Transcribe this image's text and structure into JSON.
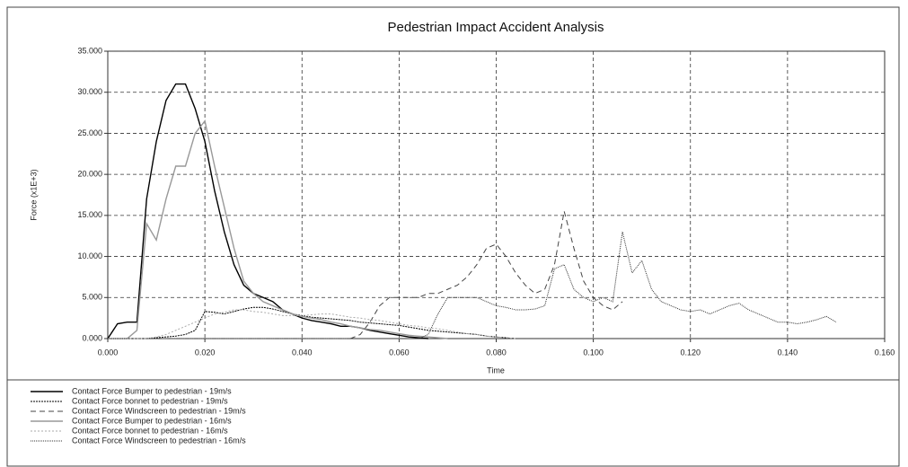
{
  "chart_data": {
    "type": "line",
    "title": "Pedestrian Impact Accident Analysis",
    "x_label": "Time",
    "y_label": "Force (x1E+3)",
    "grid": true,
    "legend": "bottom",
    "xlim": [
      0,
      0.16
    ],
    "xticks": [
      {
        "value": 0,
        "label": "0.000"
      },
      {
        "value": 0.02,
        "label": "0.020"
      },
      {
        "value": 0.04,
        "label": "0.040"
      },
      {
        "value": 0.06,
        "label": "0.060"
      },
      {
        "value": 0.08,
        "label": "0.080"
      },
      {
        "value": 0.1,
        "label": "0.100"
      },
      {
        "value": 0.12,
        "label": "0.120"
      },
      {
        "value": 0.14,
        "label": "0.140"
      },
      {
        "value": 0.16,
        "label": "0.160"
      }
    ],
    "ylim": [
      0,
      35
    ],
    "yticks": [
      {
        "value": 0,
        "label": "0.000"
      },
      {
        "value": 5,
        "label": "5.000"
      },
      {
        "value": 10,
        "label": "10.000"
      },
      {
        "value": 15,
        "label": "15.000"
      },
      {
        "value": 20,
        "label": "20.000"
      },
      {
        "value": 25,
        "label": "25.000"
      },
      {
        "value": 30,
        "label": "30.000"
      },
      {
        "value": 35,
        "label": "35.000"
      }
    ],
    "x": [
      0,
      0.002,
      0.004,
      0.006,
      0.008,
      0.01,
      0.012,
      0.014,
      0.016,
      0.018,
      0.02,
      0.022,
      0.024,
      0.026,
      0.028,
      0.03,
      0.032,
      0.034,
      0.036,
      0.038,
      0.04,
      0.042,
      0.044,
      0.046,
      0.048,
      0.05,
      0.052,
      0.054,
      0.056,
      0.058,
      0.06,
      0.062,
      0.064,
      0.066,
      0.068,
      0.07,
      0.072,
      0.074,
      0.076,
      0.078,
      0.08,
      0.082,
      0.084,
      0.086,
      0.088,
      0.09,
      0.092,
      0.094,
      0.096,
      0.098,
      0.1,
      0.102,
      0.104,
      0.106,
      0.108,
      0.11,
      0.112,
      0.114,
      0.116,
      0.118,
      0.12,
      0.122,
      0.124,
      0.126,
      0.128,
      0.13,
      0.132,
      0.134,
      0.136,
      0.138,
      0.14,
      0.142,
      0.144,
      0.146,
      0.148,
      0.15
    ],
    "series": [
      {
        "name": "Contact Force Bumper to pedestrian - 19m/s",
        "color": "#000000",
        "dash": "none",
        "width": 1.4,
        "values": [
          0,
          1.8,
          2,
          2,
          17,
          24,
          29,
          31,
          31,
          28,
          24,
          18,
          13,
          9,
          6.5,
          5.5,
          5,
          4.5,
          3.5,
          3,
          2.5,
          2.2,
          2,
          1.8,
          1.5,
          1.5,
          1.3,
          1,
          0.8,
          0.6,
          0.4,
          0.2,
          0.1,
          0,
          null,
          null,
          null,
          null,
          null,
          null,
          null,
          null,
          null,
          null,
          null,
          null,
          null,
          null,
          null,
          null,
          null,
          null,
          null,
          null,
          null,
          null,
          null,
          null,
          null,
          null,
          null,
          null,
          null,
          null,
          null,
          null,
          null,
          null,
          null,
          null,
          null,
          null,
          null,
          null,
          null,
          null
        ]
      },
      {
        "name": "Contact Force bonnet to pedestrian - 19m/s",
        "color": "#000000",
        "dash": "2,1",
        "width": 1,
        "values": [
          0,
          0,
          0,
          0,
          0,
          0.1,
          0.2,
          0.3,
          0.5,
          1,
          3.3,
          3.2,
          3,
          3.3,
          3.6,
          3.8,
          3.8,
          3.6,
          3.3,
          3,
          2.8,
          2.6,
          2.5,
          2.4,
          2.3,
          2.2,
          2,
          1.9,
          1.8,
          1.7,
          1.6,
          1.4,
          1.2,
          1,
          0.9,
          0.8,
          0.7,
          0.6,
          0.5,
          0.3,
          0.2,
          0.1,
          0,
          null,
          null,
          null,
          null,
          null,
          null,
          null,
          null,
          null,
          null,
          null,
          null,
          null,
          null,
          null,
          null,
          null,
          null,
          null,
          null,
          null,
          null,
          null,
          null,
          null,
          null,
          null,
          null,
          null,
          null,
          null,
          null,
          null
        ]
      },
      {
        "name": "Contact Force Windscreen to pedestrian - 19m/s",
        "color": "#444444",
        "dash": "6,4",
        "width": 1,
        "values": [
          0,
          0,
          0,
          0,
          0,
          0,
          0,
          0,
          0,
          0,
          0,
          0,
          0,
          0,
          0,
          0,
          0,
          0,
          0,
          0,
          0,
          0,
          0,
          0,
          0,
          0,
          0.5,
          2,
          4,
          5,
          5,
          5,
          5,
          5.5,
          5.5,
          6,
          6.5,
          7.5,
          9,
          11,
          11.5,
          10,
          8,
          6.5,
          5.5,
          6,
          9,
          15.5,
          11,
          7,
          5,
          4,
          3.5,
          4.5,
          null,
          null,
          null,
          null,
          null,
          null,
          null,
          null,
          null,
          null,
          null,
          null,
          null,
          null,
          null,
          null,
          null,
          null,
          null,
          null,
          null,
          null
        ]
      },
      {
        "name": "Contact Force Bumper to pedestrian - 16m/s",
        "color": "#999999",
        "dash": "none",
        "width": 1.4,
        "values": [
          0,
          0,
          0,
          1,
          14,
          12,
          17,
          21,
          21,
          25,
          26.5,
          21,
          16,
          11,
          7,
          5.5,
          4.5,
          4,
          3.5,
          3,
          2.7,
          2.5,
          2.3,
          2,
          1.8,
          1.5,
          1.3,
          1.1,
          1,
          0.8,
          0.6,
          0.4,
          0.3,
          0.2,
          0.1,
          0,
          null,
          null,
          null,
          null,
          null,
          null,
          null,
          null,
          null,
          null,
          null,
          null,
          null,
          null,
          null,
          null,
          null,
          null,
          null,
          null,
          null,
          null,
          null,
          null,
          null,
          null,
          null,
          null,
          null,
          null,
          null,
          null,
          null,
          null,
          null,
          null,
          null,
          null,
          null,
          null
        ]
      },
      {
        "name": "Contact Force bonnet to pedestrian - 16m/s",
        "color": "#aaaaaa",
        "dash": "2,2",
        "width": 1,
        "values": [
          0,
          0,
          0,
          0,
          0,
          0.2,
          0.5,
          1,
          1.5,
          2,
          2.5,
          3,
          3.2,
          3.5,
          3.5,
          3.3,
          3.2,
          3,
          2.8,
          2.8,
          2.8,
          2.9,
          3,
          3,
          2.8,
          2.6,
          2.5,
          2.3,
          2.2,
          2,
          1.8,
          1.6,
          1.5,
          1.3,
          1.2,
          1,
          0.8,
          0.6,
          0.5,
          0.3,
          0.2,
          0.1,
          0,
          null,
          null,
          null,
          null,
          null,
          null,
          null,
          null,
          null,
          null,
          null,
          null,
          null,
          null,
          null,
          null,
          null,
          null,
          null,
          null,
          null,
          null,
          null,
          null,
          null,
          null,
          null,
          null,
          null,
          null,
          null,
          null,
          null
        ]
      },
      {
        "name": "Contact Force Windscreen to pedestrian - 16m/s",
        "color": "#333333",
        "dash": "1,1",
        "width": 1,
        "values": [
          0,
          0,
          0,
          0,
          0,
          0,
          0,
          0,
          0,
          0,
          0,
          0,
          0,
          0,
          0,
          0,
          0,
          0,
          0,
          0,
          0,
          0,
          0,
          0,
          0,
          0,
          0,
          0,
          0,
          0,
          0,
          0,
          0,
          0.5,
          3,
          5,
          5,
          5,
          5,
          4.5,
          4,
          3.8,
          3.5,
          3.5,
          3.6,
          4,
          8.5,
          9,
          6,
          5,
          4.5,
          5,
          4.5,
          13,
          8,
          9.5,
          6,
          4.5,
          4,
          3.5,
          3.3,
          3.5,
          3,
          3.5,
          4,
          4.3,
          3.5,
          3,
          2.5,
          2,
          2,
          1.8,
          2,
          2.3,
          2.7,
          2
        ]
      }
    ]
  }
}
